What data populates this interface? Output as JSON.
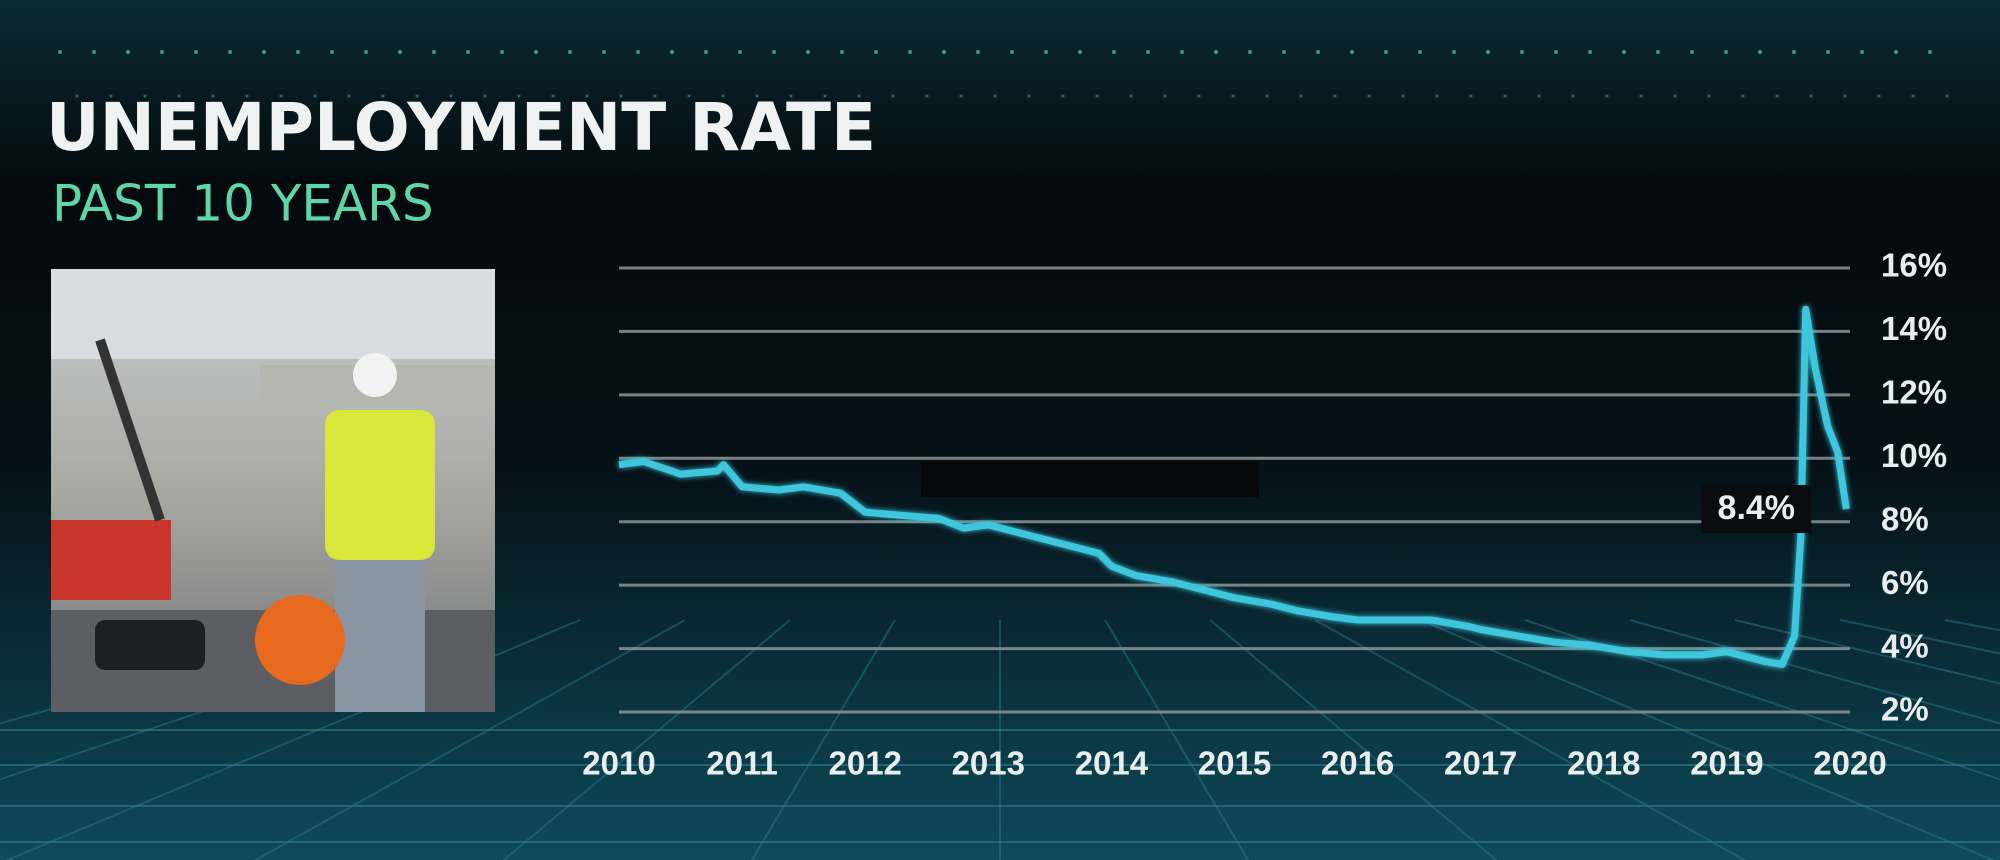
{
  "chart_data": {
    "type": "line",
    "title": "UNEMPLOYMENT RATE",
    "subtitle": "PAST 10 YEARS",
    "x": [
      2010.0,
      2010.2,
      2010.5,
      2010.8,
      2010.85,
      2011.0,
      2011.3,
      2011.5,
      2011.8,
      2012.0,
      2012.3,
      2012.6,
      2012.8,
      2013.0,
      2013.3,
      2013.6,
      2013.9,
      2014.0,
      2014.2,
      2014.5,
      2014.8,
      2015.0,
      2015.3,
      2015.5,
      2015.8,
      2016.0,
      2016.3,
      2016.6,
      2016.9,
      2017.0,
      2017.3,
      2017.6,
      2017.9,
      2018.2,
      2018.5,
      2018.8,
      2019.0,
      2019.3,
      2019.45,
      2019.55,
      2019.6,
      2019.64,
      2019.72,
      2019.82,
      2019.9,
      2019.97
    ],
    "values": [
      9.8,
      9.9,
      9.5,
      9.6,
      9.8,
      9.1,
      9.0,
      9.1,
      8.9,
      8.3,
      8.2,
      8.1,
      7.8,
      7.9,
      7.6,
      7.3,
      7.0,
      6.6,
      6.3,
      6.1,
      5.8,
      5.6,
      5.4,
      5.2,
      5.0,
      4.9,
      4.9,
      4.9,
      4.7,
      4.6,
      4.4,
      4.2,
      4.1,
      3.9,
      3.8,
      3.8,
      3.9,
      3.6,
      3.5,
      4.4,
      7.5,
      14.7,
      12.8,
      11.0,
      10.2,
      8.4
    ],
    "value_labels": [
      null,
      null,
      null,
      null,
      null,
      null,
      null,
      null,
      null,
      null,
      null,
      null,
      null,
      null,
      null,
      null,
      null,
      null,
      null,
      null,
      null,
      null,
      null,
      null,
      null,
      null,
      null,
      null,
      null,
      null,
      null,
      null,
      null,
      null,
      null,
      null,
      null,
      null,
      null,
      null,
      null,
      null,
      null,
      null,
      null,
      "8.4%"
    ],
    "color": "#3cc6dc",
    "xlim": [
      2010,
      2020
    ],
    "xticks": [
      2010,
      2011,
      2012,
      2013,
      2014,
      2015,
      2016,
      2017,
      2018,
      2019,
      2020
    ],
    "ylim": [
      2,
      16
    ],
    "yticks": [
      {
        "value": 2,
        "label": "2%"
      },
      {
        "value": 4,
        "label": "4%"
      },
      {
        "value": 6,
        "label": "6%"
      },
      {
        "value": 8,
        "label": "8%"
      },
      {
        "value": 10,
        "label": "10%"
      },
      {
        "value": 12,
        "label": "12%"
      },
      {
        "value": 14,
        "label": "14%"
      },
      {
        "value": 16,
        "label": "16%"
      }
    ],
    "grid": true
  }
}
